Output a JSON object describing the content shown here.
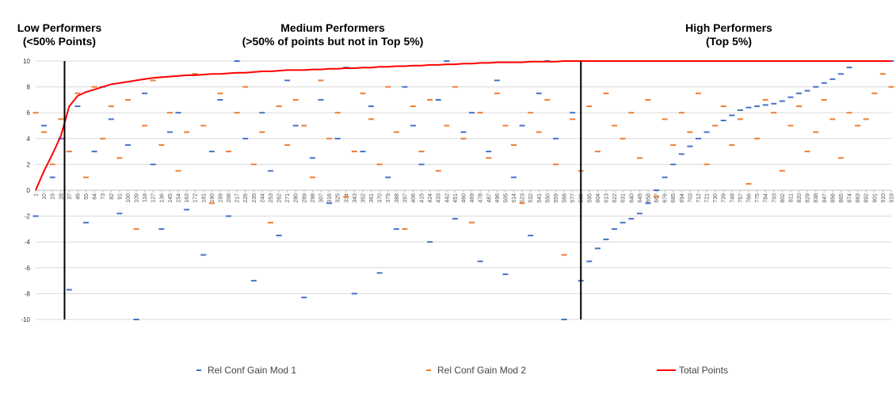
{
  "chart_data": {
    "type": "scatter",
    "sections": [
      {
        "title": "Low Performers",
        "subtitle": "(<50% Points)"
      },
      {
        "title": "Medium Performers",
        "subtitle": "(>50% of points but not in Top 5%)"
      },
      {
        "title": "High Performers",
        "subtitle": "(Top 5%)"
      }
    ],
    "section_dividers": [
      32,
      586
    ],
    "x": [
      1,
      10,
      19,
      28,
      37,
      46,
      55,
      64,
      73,
      82,
      91,
      100,
      109,
      118,
      127,
      136,
      145,
      154,
      163,
      172,
      181,
      190,
      199,
      208,
      217,
      226,
      235,
      244,
      253,
      262,
      271,
      280,
      289,
      298,
      307,
      316,
      325,
      334,
      343,
      352,
      361,
      370,
      379,
      388,
      397,
      406,
      415,
      424,
      433,
      442,
      451,
      460,
      469,
      478,
      487,
      496,
      505,
      514,
      523,
      532,
      541,
      550,
      559,
      568,
      577,
      586,
      595,
      604,
      613,
      622,
      631,
      640,
      649,
      658,
      667,
      676,
      685,
      694,
      703,
      712,
      721,
      730,
      739,
      748,
      757,
      766,
      775,
      784,
      793,
      802,
      811,
      820,
      829,
      838,
      847,
      856,
      865,
      874,
      883,
      892,
      901,
      910,
      919
    ],
    "xlim": [
      1,
      919
    ],
    "xticks": [
      1,
      10,
      19,
      28,
      37,
      46,
      55,
      64,
      73,
      82,
      91,
      100,
      109,
      118,
      127,
      136,
      145,
      154,
      163,
      172,
      181,
      190,
      199,
      208,
      217,
      226,
      235,
      244,
      253,
      262,
      271,
      280,
      289,
      298,
      307,
      316,
      325,
      334,
      343,
      352,
      361,
      370,
      379,
      388,
      397,
      406,
      415,
      424,
      433,
      442,
      451,
      460,
      469,
      478,
      487,
      496,
      505,
      514,
      523,
      532,
      541,
      550,
      559,
      568,
      577,
      586,
      595,
      604,
      613,
      622,
      631,
      640,
      649,
      658,
      667,
      676,
      685,
      694,
      703,
      712,
      721,
      730,
      739,
      748,
      757,
      766,
      775,
      784,
      793,
      802,
      811,
      820,
      829,
      838,
      847,
      856,
      865,
      874,
      883,
      892,
      901,
      910,
      919
    ],
    "ylim": [
      -10,
      10
    ],
    "yticks": [
      -10,
      -8,
      -6,
      -4,
      -2,
      0,
      2,
      4,
      6,
      8,
      10
    ],
    "grid": true,
    "legend": "bottom",
    "series": [
      {
        "name": "Rel Conf Gain Mod 1",
        "type": "scatter",
        "color": "#4472c4",
        "values": [
          -2,
          5,
          1,
          4,
          -7.7,
          6.5,
          -2.5,
          3,
          8,
          5.5,
          -1.8,
          3.5,
          -10,
          7.5,
          2,
          -3,
          4.5,
          6,
          -1.5,
          9,
          -5,
          3,
          7,
          -2,
          10,
          4,
          -7,
          6,
          1.5,
          -3.5,
          8.5,
          5,
          -8.3,
          2.5,
          7,
          -1,
          4,
          9.5,
          -8,
          3,
          6.5,
          -6.4,
          1,
          -3,
          8,
          5,
          2,
          -4,
          7,
          10,
          -2.2,
          4.5,
          6,
          -5.5,
          3,
          8.5,
          -6.5,
          1,
          5,
          -3.5,
          7.5,
          10,
          4,
          -10,
          6,
          -7,
          -5.5,
          -4.5,
          -3.8,
          -3,
          -2.5,
          -2.2,
          -1.8,
          -1,
          0,
          1,
          2,
          2.8,
          3.4,
          4,
          4.5,
          5,
          5.4,
          5.8,
          6.2,
          6.4,
          6.5,
          6.6,
          6.7,
          6.9,
          7.2,
          7.5,
          7.7,
          8,
          8.3,
          8.6,
          9,
          9.5,
          10,
          10,
          10,
          10,
          10
        ]
      },
      {
        "name": "Rel Conf Gain Mod 2",
        "type": "scatter",
        "color": "#ed7d31",
        "values": [
          6,
          4.5,
          2,
          5.5,
          3,
          7.5,
          1,
          8,
          4,
          6.5,
          2.5,
          7,
          -3,
          5,
          8.5,
          3.5,
          6,
          1.5,
          4.5,
          9,
          5,
          -1,
          7.5,
          3,
          6,
          8,
          2,
          4.5,
          -2.5,
          6.5,
          3.5,
          7,
          5,
          1,
          8.5,
          4,
          6,
          -0.5,
          3,
          7.5,
          5.5,
          2,
          8,
          4.5,
          -3,
          6.5,
          3,
          7,
          1.5,
          5,
          8,
          4,
          -2.5,
          6,
          2.5,
          7.5,
          5,
          3.5,
          -1,
          6,
          4.5,
          7,
          2,
          -5,
          5.5,
          1.5,
          6.5,
          3,
          7.5,
          5,
          4,
          6,
          2.5,
          7,
          -0.5,
          5.5,
          3.5,
          6,
          4.5,
          7.5,
          2,
          5,
          6.5,
          3.5,
          5.5,
          0.5,
          4,
          7,
          6,
          1.5,
          5,
          6.5,
          3,
          4.5,
          7,
          5.5,
          2.5,
          6,
          5,
          5.5,
          7.5,
          9,
          8
        ]
      },
      {
        "name": "Total Points",
        "type": "line",
        "color": "#ff0000",
        "values": [
          0,
          1.5,
          2.8,
          4.2,
          6.5,
          7.3,
          7.6,
          7.8,
          8.0,
          8.2,
          8.3,
          8.4,
          8.5,
          8.6,
          8.7,
          8.75,
          8.8,
          8.85,
          8.9,
          8.9,
          8.95,
          9.0,
          9.0,
          9.05,
          9.1,
          9.1,
          9.15,
          9.2,
          9.2,
          9.25,
          9.3,
          9.3,
          9.3,
          9.35,
          9.35,
          9.4,
          9.4,
          9.45,
          9.45,
          9.5,
          9.5,
          9.55,
          9.55,
          9.6,
          9.6,
          9.65,
          9.65,
          9.7,
          9.7,
          9.75,
          9.75,
          9.8,
          9.8,
          9.85,
          9.85,
          9.9,
          9.9,
          9.9,
          9.9,
          9.95,
          9.95,
          9.95,
          9.95,
          10,
          10,
          10,
          10,
          10,
          10,
          10,
          10,
          10,
          10,
          10,
          10,
          10,
          10,
          10,
          10,
          10,
          10,
          10,
          10,
          10,
          10,
          10,
          10,
          10,
          10,
          10,
          10,
          10,
          10,
          10,
          10,
          10,
          10,
          10,
          10,
          10,
          10,
          10,
          10
        ]
      }
    ]
  }
}
